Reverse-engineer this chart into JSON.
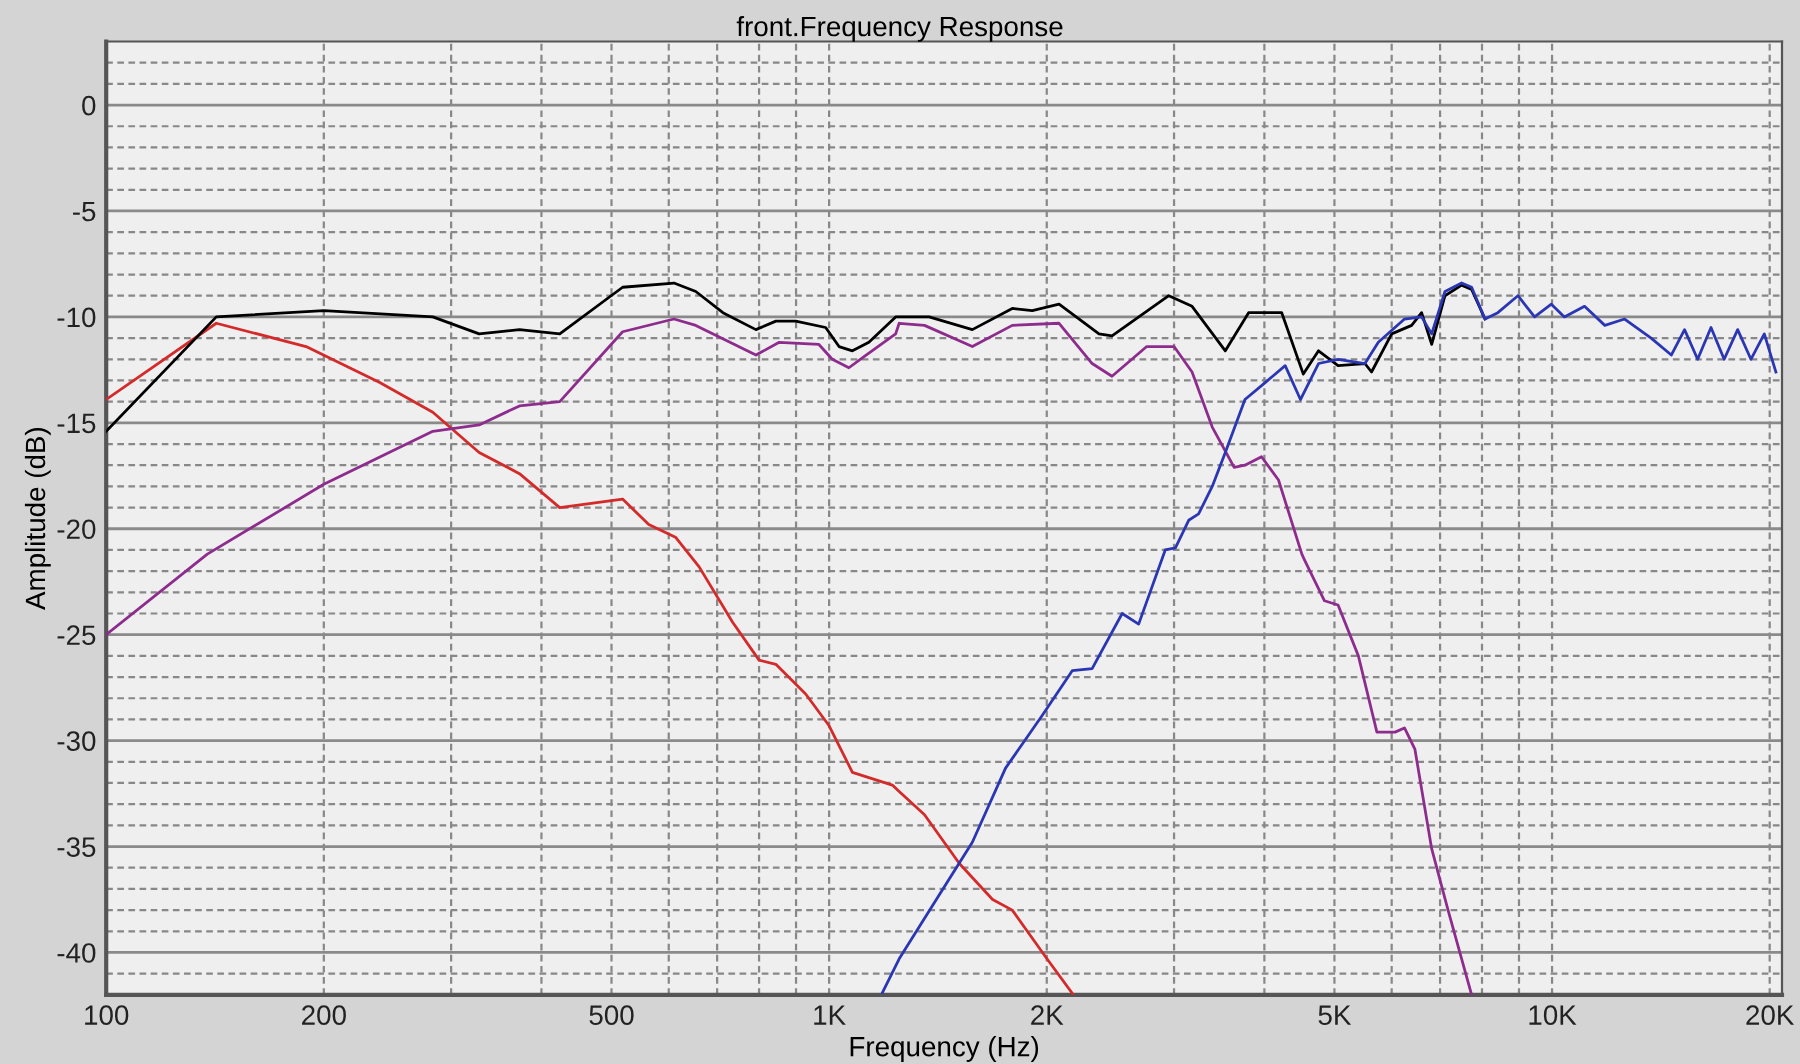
{
  "chart_data": {
    "type": "line",
    "title": "front.Frequency Response",
    "xlabel": "Frequency (Hz)",
    "ylabel": "Amplitude (dB)",
    "log": "x",
    "grid": true,
    "xlim": [
      100,
      20800
    ],
    "ylim": [
      -42,
      3
    ],
    "xticks": [
      100,
      200,
      {
        "value": 300,
        "label": null
      },
      {
        "value": 400,
        "label": null
      },
      500,
      {
        "value": 600,
        "label": null
      },
      {
        "value": 700,
        "label": null
      },
      {
        "value": 800,
        "label": null
      },
      {
        "value": 900,
        "label": null
      },
      {
        "value": 1000,
        "label": "1K"
      },
      {
        "value": 2000,
        "label": "2K"
      },
      {
        "value": 3000,
        "label": null
      },
      {
        "value": 4000,
        "label": null
      },
      {
        "value": 5000,
        "label": "5K"
      },
      {
        "value": 6000,
        "label": null
      },
      {
        "value": 7000,
        "label": null
      },
      {
        "value": 8000,
        "label": null
      },
      {
        "value": 9000,
        "label": null
      },
      {
        "value": 10000,
        "label": "10K"
      },
      {
        "value": 20000,
        "label": "20K"
      }
    ],
    "yticks": [
      {
        "value": 2,
        "label": null
      },
      {
        "value": 1,
        "label": null
      },
      0,
      {
        "value": -1,
        "label": null
      },
      {
        "value": -2,
        "label": null
      },
      {
        "value": -3,
        "label": null
      },
      {
        "value": -4,
        "label": null
      },
      -5,
      {
        "value": -6,
        "label": null
      },
      {
        "value": -7,
        "label": null
      },
      {
        "value": -8,
        "label": null
      },
      {
        "value": -9,
        "label": null
      },
      -10,
      {
        "value": -11,
        "label": null
      },
      {
        "value": -12,
        "label": null
      },
      {
        "value": -13,
        "label": null
      },
      {
        "value": -14,
        "label": null
      },
      -15,
      {
        "value": -16,
        "label": null
      },
      {
        "value": -17,
        "label": null
      },
      {
        "value": -18,
        "label": null
      },
      {
        "value": -19,
        "label": null
      },
      -20,
      {
        "value": -21,
        "label": null
      },
      {
        "value": -22,
        "label": null
      },
      {
        "value": -23,
        "label": null
      },
      {
        "value": -24,
        "label": null
      },
      -25,
      {
        "value": -26,
        "label": null
      },
      {
        "value": -27,
        "label": null
      },
      {
        "value": -28,
        "label": null
      },
      {
        "value": -29,
        "label": null
      },
      -30,
      {
        "value": -31,
        "label": null
      },
      {
        "value": -32,
        "label": null
      },
      {
        "value": -33,
        "label": null
      },
      {
        "value": -34,
        "label": null
      },
      -35,
      {
        "value": -36,
        "label": null
      },
      {
        "value": -37,
        "label": null
      },
      {
        "value": -38,
        "label": null
      },
      {
        "value": -39,
        "label": null
      },
      -40,
      {
        "value": -41,
        "label": null
      }
    ],
    "series": [
      {
        "color": "#d42a2a",
        "x": [
          100,
          142,
          189,
          239,
          283,
          328,
          373,
          424,
          518,
          563,
          613,
          661,
          735,
          800,
          844,
          928,
          1000,
          1077,
          1223,
          1250,
          1355,
          1514,
          1683,
          1792,
          1992,
          2177
        ],
        "values": [
          -13.9,
          -10.3,
          -11.4,
          -13.1,
          -14.5,
          -16.4,
          -17.4,
          -19,
          -18.6,
          -19.8,
          -20.4,
          -21.8,
          -24.4,
          -26.2,
          -26.4,
          -27.8,
          -29.3,
          -31.5,
          -32.1,
          -32.4,
          -33.5,
          -35.8,
          -37.5,
          -38,
          -40.2,
          -42
        ]
      },
      {
        "color": "#8e2c8e",
        "x": [
          100,
          138,
          200,
          283,
          328,
          373,
          424,
          518,
          610,
          654,
          792,
          853,
          968,
          1010,
          1065,
          1125,
          1236,
          1250,
          1355,
          1578,
          1792,
          2080,
          2311,
          2462,
          2750,
          3000,
          3177,
          3388,
          3633,
          3760,
          3964,
          4184,
          4507,
          4550,
          4844,
          5058,
          5396,
          5724,
          6064,
          6250,
          6460,
          6815,
          7180,
          7740
        ],
        "values": [
          -25,
          -21.2,
          -17.9,
          -15.4,
          -15.1,
          -14.2,
          -14,
          -10.7,
          -10.1,
          -10.4,
          -11.8,
          -11.2,
          -11.3,
          -12,
          -12.4,
          -11.8,
          -10.8,
          -10.3,
          -10.4,
          -11.4,
          -10.4,
          -10.3,
          -12.2,
          -12.8,
          -11.4,
          -11.4,
          -12.6,
          -15.2,
          -17.1,
          -17,
          -16.6,
          -17.7,
          -21.2,
          -21.5,
          -23.4,
          -23.6,
          -26,
          -29.6,
          -29.6,
          -29.4,
          -30.4,
          -35.1,
          -38,
          -42
        ]
      },
      {
        "color": "#000000",
        "x": [
          100,
          142,
          200,
          283,
          328,
          373,
          424,
          518,
          610,
          654,
          713,
          792,
          844,
          899,
          989,
          1032,
          1077,
          1135,
          1236,
          1250,
          1375,
          1578,
          1792,
          1910,
          2080,
          2362,
          2462,
          2950,
          3177,
          3532,
          3804,
          4227,
          4528,
          4753,
          5058,
          5510,
          5627,
          6000,
          6394,
          6600,
          6815,
          7110,
          7497,
          7740,
          8076
        ],
        "values": [
          -15.4,
          -10,
          -9.7,
          -10,
          -10.8,
          -10.6,
          -10.8,
          -8.6,
          -8.4,
          -8.8,
          -9.8,
          -10.6,
          -10.2,
          -10.2,
          -10.5,
          -11.4,
          -11.6,
          -11.2,
          -10,
          -10,
          -10,
          -10.6,
          -9.6,
          -9.7,
          -9.4,
          -10.8,
          -10.9,
          -9,
          -9.5,
          -11.6,
          -9.8,
          -9.8,
          -12.7,
          -11.6,
          -12.3,
          -12.2,
          -12.6,
          -10.8,
          -10.4,
          -9.8,
          -11.3,
          -9,
          -8.5,
          -8.7,
          -10.1
        ]
      },
      {
        "color": "#2a36b4",
        "x": [
          1185,
          1250,
          1419,
          1578,
          1754,
          1972,
          2169,
          2311,
          2543,
          2680,
          2917,
          3013,
          3143,
          3244,
          3388,
          3532,
          3760,
          4010,
          4274,
          4487,
          4753,
          5058,
          5510,
          5750,
          6250,
          6600,
          6815,
          7110,
          7497,
          7740,
          8076,
          8414,
          8970,
          9459,
          9977,
          10400,
          11090,
          11830,
          12600,
          13710,
          14620,
          15250,
          15900,
          16590,
          17300,
          18060,
          18840,
          19660,
          20400
        ],
        "values": [
          -41.9,
          -40.3,
          -37.3,
          -34.8,
          -31.3,
          -28.8,
          -26.7,
          -26.6,
          -24,
          -24.5,
          -21,
          -20.9,
          -19.6,
          -19.3,
          -18,
          -16.4,
          -13.9,
          -13.1,
          -12.3,
          -13.9,
          -12.2,
          -12,
          -12.2,
          -11.2,
          -10.1,
          -10,
          -10.8,
          -8.8,
          -8.4,
          -8.6,
          -10.1,
          -9.8,
          -9,
          -10,
          -9.4,
          -10,
          -9.5,
          -10.4,
          -10.1,
          -11,
          -11.8,
          -10.6,
          -12,
          -10.5,
          -12,
          -10.6,
          -12,
          -10.8,
          -12.6
        ]
      }
    ]
  }
}
